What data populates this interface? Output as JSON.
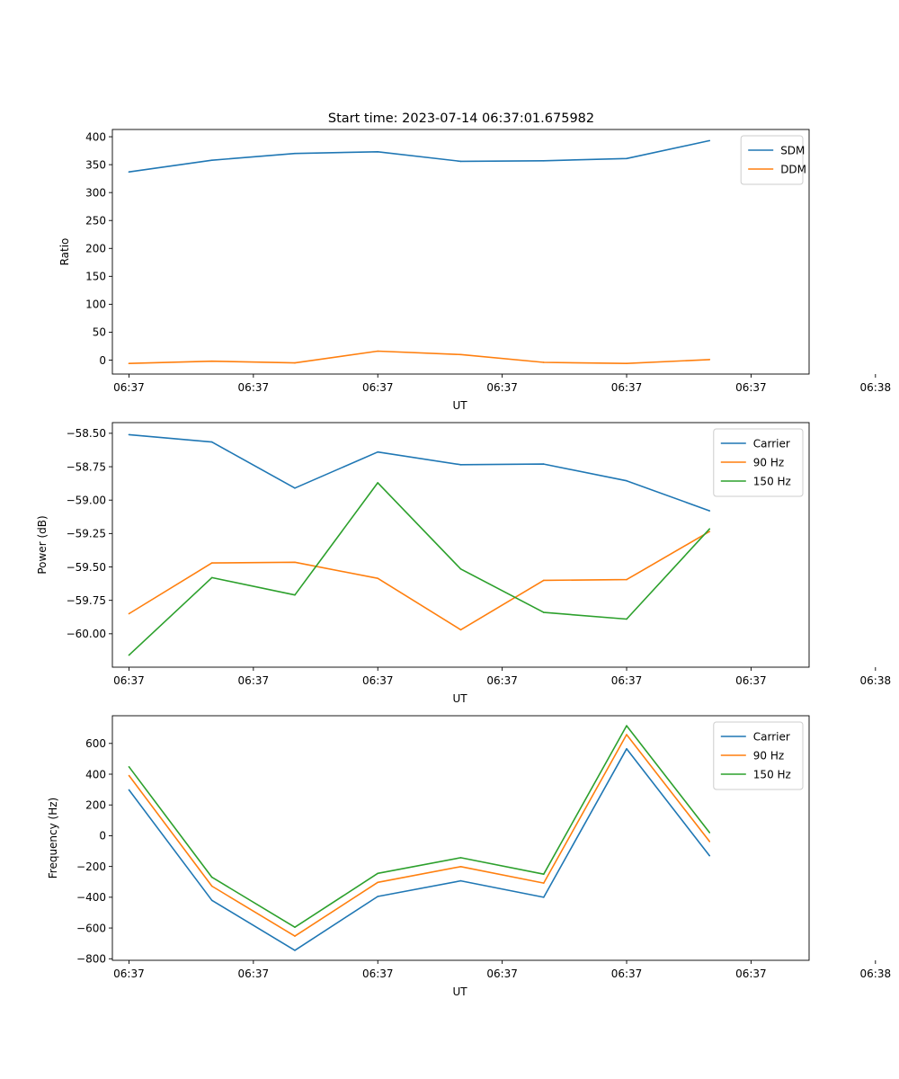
{
  "figure_title": "Start time: 2023-07-14 06:37:01.675982",
  "colors": {
    "blue": "#1f77b4",
    "orange": "#ff7f0e",
    "green": "#2ca02c"
  },
  "chart_data": [
    {
      "type": "line",
      "title": "Start time: 2023-07-14 06:37:01.675982",
      "xlabel": "UT",
      "ylabel": "Ratio",
      "x": [
        1,
        2,
        3,
        4,
        5,
        6,
        7,
        8
      ],
      "xlim": [
        0.8,
        9.2
      ],
      "xticks": [
        1,
        2.5,
        4,
        5.5,
        7,
        8.5,
        10
      ],
      "xtick_labels": [
        "06:37",
        "06:37",
        "06:37",
        "06:37",
        "06:37",
        "06:37",
        "06:38"
      ],
      "ylim": [
        -25,
        413
      ],
      "yticks": [
        0,
        50,
        100,
        150,
        200,
        250,
        300,
        350,
        400
      ],
      "ytick_labels": [
        "0",
        "50",
        "100",
        "150",
        "200",
        "250",
        "300",
        "350",
        "400"
      ],
      "legend": "top-right",
      "series": [
        {
          "name": "SDM",
          "color": "#1f77b4",
          "values": [
            337,
            358,
            370,
            373,
            356,
            357,
            361,
            393
          ]
        },
        {
          "name": "DDM",
          "color": "#ff7f0e",
          "values": [
            -6,
            -2,
            -5,
            16,
            10,
            -4,
            -6,
            1
          ]
        }
      ]
    },
    {
      "type": "line",
      "title": "",
      "xlabel": "UT",
      "ylabel": "Power (dB)",
      "x": [
        1,
        2,
        3,
        4,
        5,
        6,
        7,
        8
      ],
      "xlim": [
        0.8,
        9.2
      ],
      "xticks": [
        1,
        2.5,
        4,
        5.5,
        7,
        8.5,
        10
      ],
      "xtick_labels": [
        "06:37",
        "06:37",
        "06:37",
        "06:37",
        "06:37",
        "06:37",
        "06:38"
      ],
      "ylim": [
        -60.25,
        -58.42
      ],
      "yticks": [
        -60.0,
        -59.75,
        -59.5,
        -59.25,
        -59.0,
        -58.75,
        -58.5
      ],
      "ytick_labels": [
        "−60.00",
        "−59.75",
        "−59.50",
        "−59.25",
        "−59.00",
        "−58.75",
        "−58.50"
      ],
      "legend": "top-right",
      "series": [
        {
          "name": "Carrier",
          "color": "#1f77b4",
          "values": [
            -58.51,
            -58.565,
            -58.91,
            -58.64,
            -58.735,
            -58.73,
            -58.855,
            -59.08
          ]
        },
        {
          "name": "90 Hz",
          "color": "#ff7f0e",
          "values": [
            -59.85,
            -59.47,
            -59.465,
            -59.585,
            -59.97,
            -59.6,
            -59.595,
            -59.235
          ]
        },
        {
          "name": "150 Hz",
          "color": "#2ca02c",
          "values": [
            -60.16,
            -59.58,
            -59.71,
            -58.87,
            -59.515,
            -59.84,
            -59.89,
            -59.215
          ]
        }
      ]
    },
    {
      "type": "line",
      "title": "",
      "xlabel": "UT",
      "ylabel": "Frequency (Hz)",
      "x": [
        1,
        2,
        3,
        4,
        5,
        6,
        7,
        8
      ],
      "xlim": [
        0.8,
        9.2
      ],
      "xticks": [
        1,
        2.5,
        4,
        5.5,
        7,
        8.5,
        10
      ],
      "xtick_labels": [
        "06:37",
        "06:37",
        "06:37",
        "06:37",
        "06:37",
        "06:37",
        "06:38"
      ],
      "ylim": [
        -810,
        780
      ],
      "yticks": [
        -800,
        -600,
        -400,
        -200,
        0,
        200,
        400,
        600
      ],
      "ytick_labels": [
        "−800",
        "−600",
        "−400",
        "−200",
        "0",
        "200",
        "400",
        "600"
      ],
      "legend": "top-right",
      "series": [
        {
          "name": "Carrier",
          "color": "#1f77b4",
          "values": [
            298,
            -420,
            -745,
            -395,
            -293,
            -400,
            565,
            -130
          ]
        },
        {
          "name": "90 Hz",
          "color": "#ff7f0e",
          "values": [
            391,
            -328,
            -653,
            -303,
            -201,
            -308,
            657,
            -38
          ]
        },
        {
          "name": "150 Hz",
          "color": "#2ca02c",
          "values": [
            448,
            -270,
            -595,
            -245,
            -143,
            -250,
            715,
            20
          ]
        }
      ]
    }
  ]
}
